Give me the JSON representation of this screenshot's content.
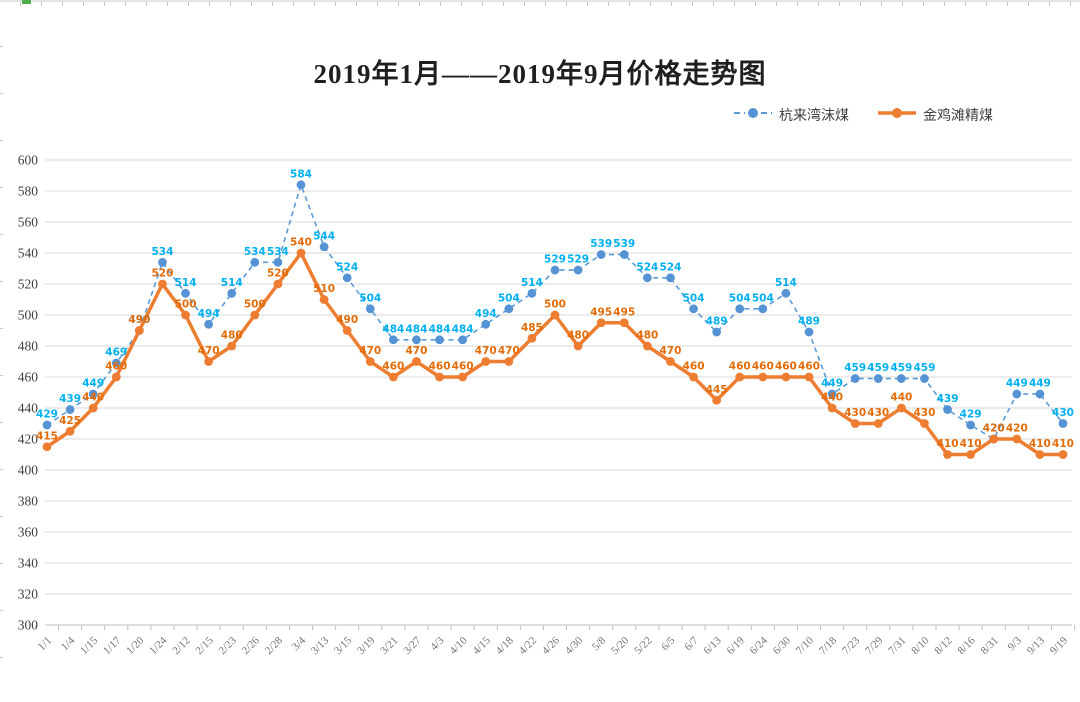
{
  "chart_data": {
    "type": "line",
    "title": "2019年1月——2019年9月价格走势图",
    "categories": [
      "1/1",
      "1/4",
      "1/15",
      "1/17",
      "1/20",
      "1/24",
      "2/12",
      "2/15",
      "2/23",
      "2/26",
      "2/28",
      "3/4",
      "3/13",
      "3/15",
      "3/19",
      "3/21",
      "3/27",
      "4/3",
      "4/10",
      "4/15",
      "4/18",
      "4/22",
      "4/26",
      "4/30",
      "5/8",
      "5/20",
      "5/22",
      "6/5",
      "6/7",
      "6/13",
      "6/19",
      "6/24",
      "6/30",
      "7/10",
      "7/18",
      "7/23",
      "7/29",
      "7/31",
      "8/10",
      "8/12",
      "8/16",
      "8/31",
      "9/3",
      "9/13",
      "9/19"
    ],
    "series": [
      {
        "name": "杭来湾沫煤",
        "style": "dashed",
        "line_color": "#5B9BD5",
        "marker_color": "#5593D4",
        "label_color": "#00B0F0",
        "values": [
          429,
          439,
          449,
          469,
          490,
          534,
          514,
          494,
          514,
          534,
          534,
          584,
          544,
          524,
          504,
          484,
          484,
          484,
          484,
          494,
          504,
          514,
          529,
          529,
          539,
          539,
          524,
          524,
          504,
          489,
          504,
          504,
          514,
          489,
          449,
          459,
          459,
          459,
          459,
          439,
          429,
          420,
          449,
          449,
          430
        ]
      },
      {
        "name": "金鸡滩精煤",
        "style": "solid",
        "line_color": "#ED7D31",
        "marker_color": "#ED7D31",
        "label_color": "#E36C09",
        "values": [
          415,
          425,
          440,
          460,
          490,
          520,
          500,
          470,
          480,
          500,
          520,
          540,
          510,
          490,
          470,
          460,
          470,
          460,
          460,
          470,
          470,
          485,
          500,
          480,
          495,
          495,
          480,
          470,
          460,
          445,
          460,
          460,
          460,
          460,
          440,
          430,
          430,
          440,
          430,
          410,
          410,
          420,
          420,
          410,
          410
        ]
      }
    ],
    "ylim": [
      300,
      600
    ],
    "y_ticks": [
      300,
      320,
      340,
      360,
      380,
      400,
      420,
      440,
      460,
      480,
      500,
      520,
      540,
      560,
      580,
      600
    ],
    "grid": true,
    "legend_position": "top-right",
    "background": "#FFFFFF"
  }
}
